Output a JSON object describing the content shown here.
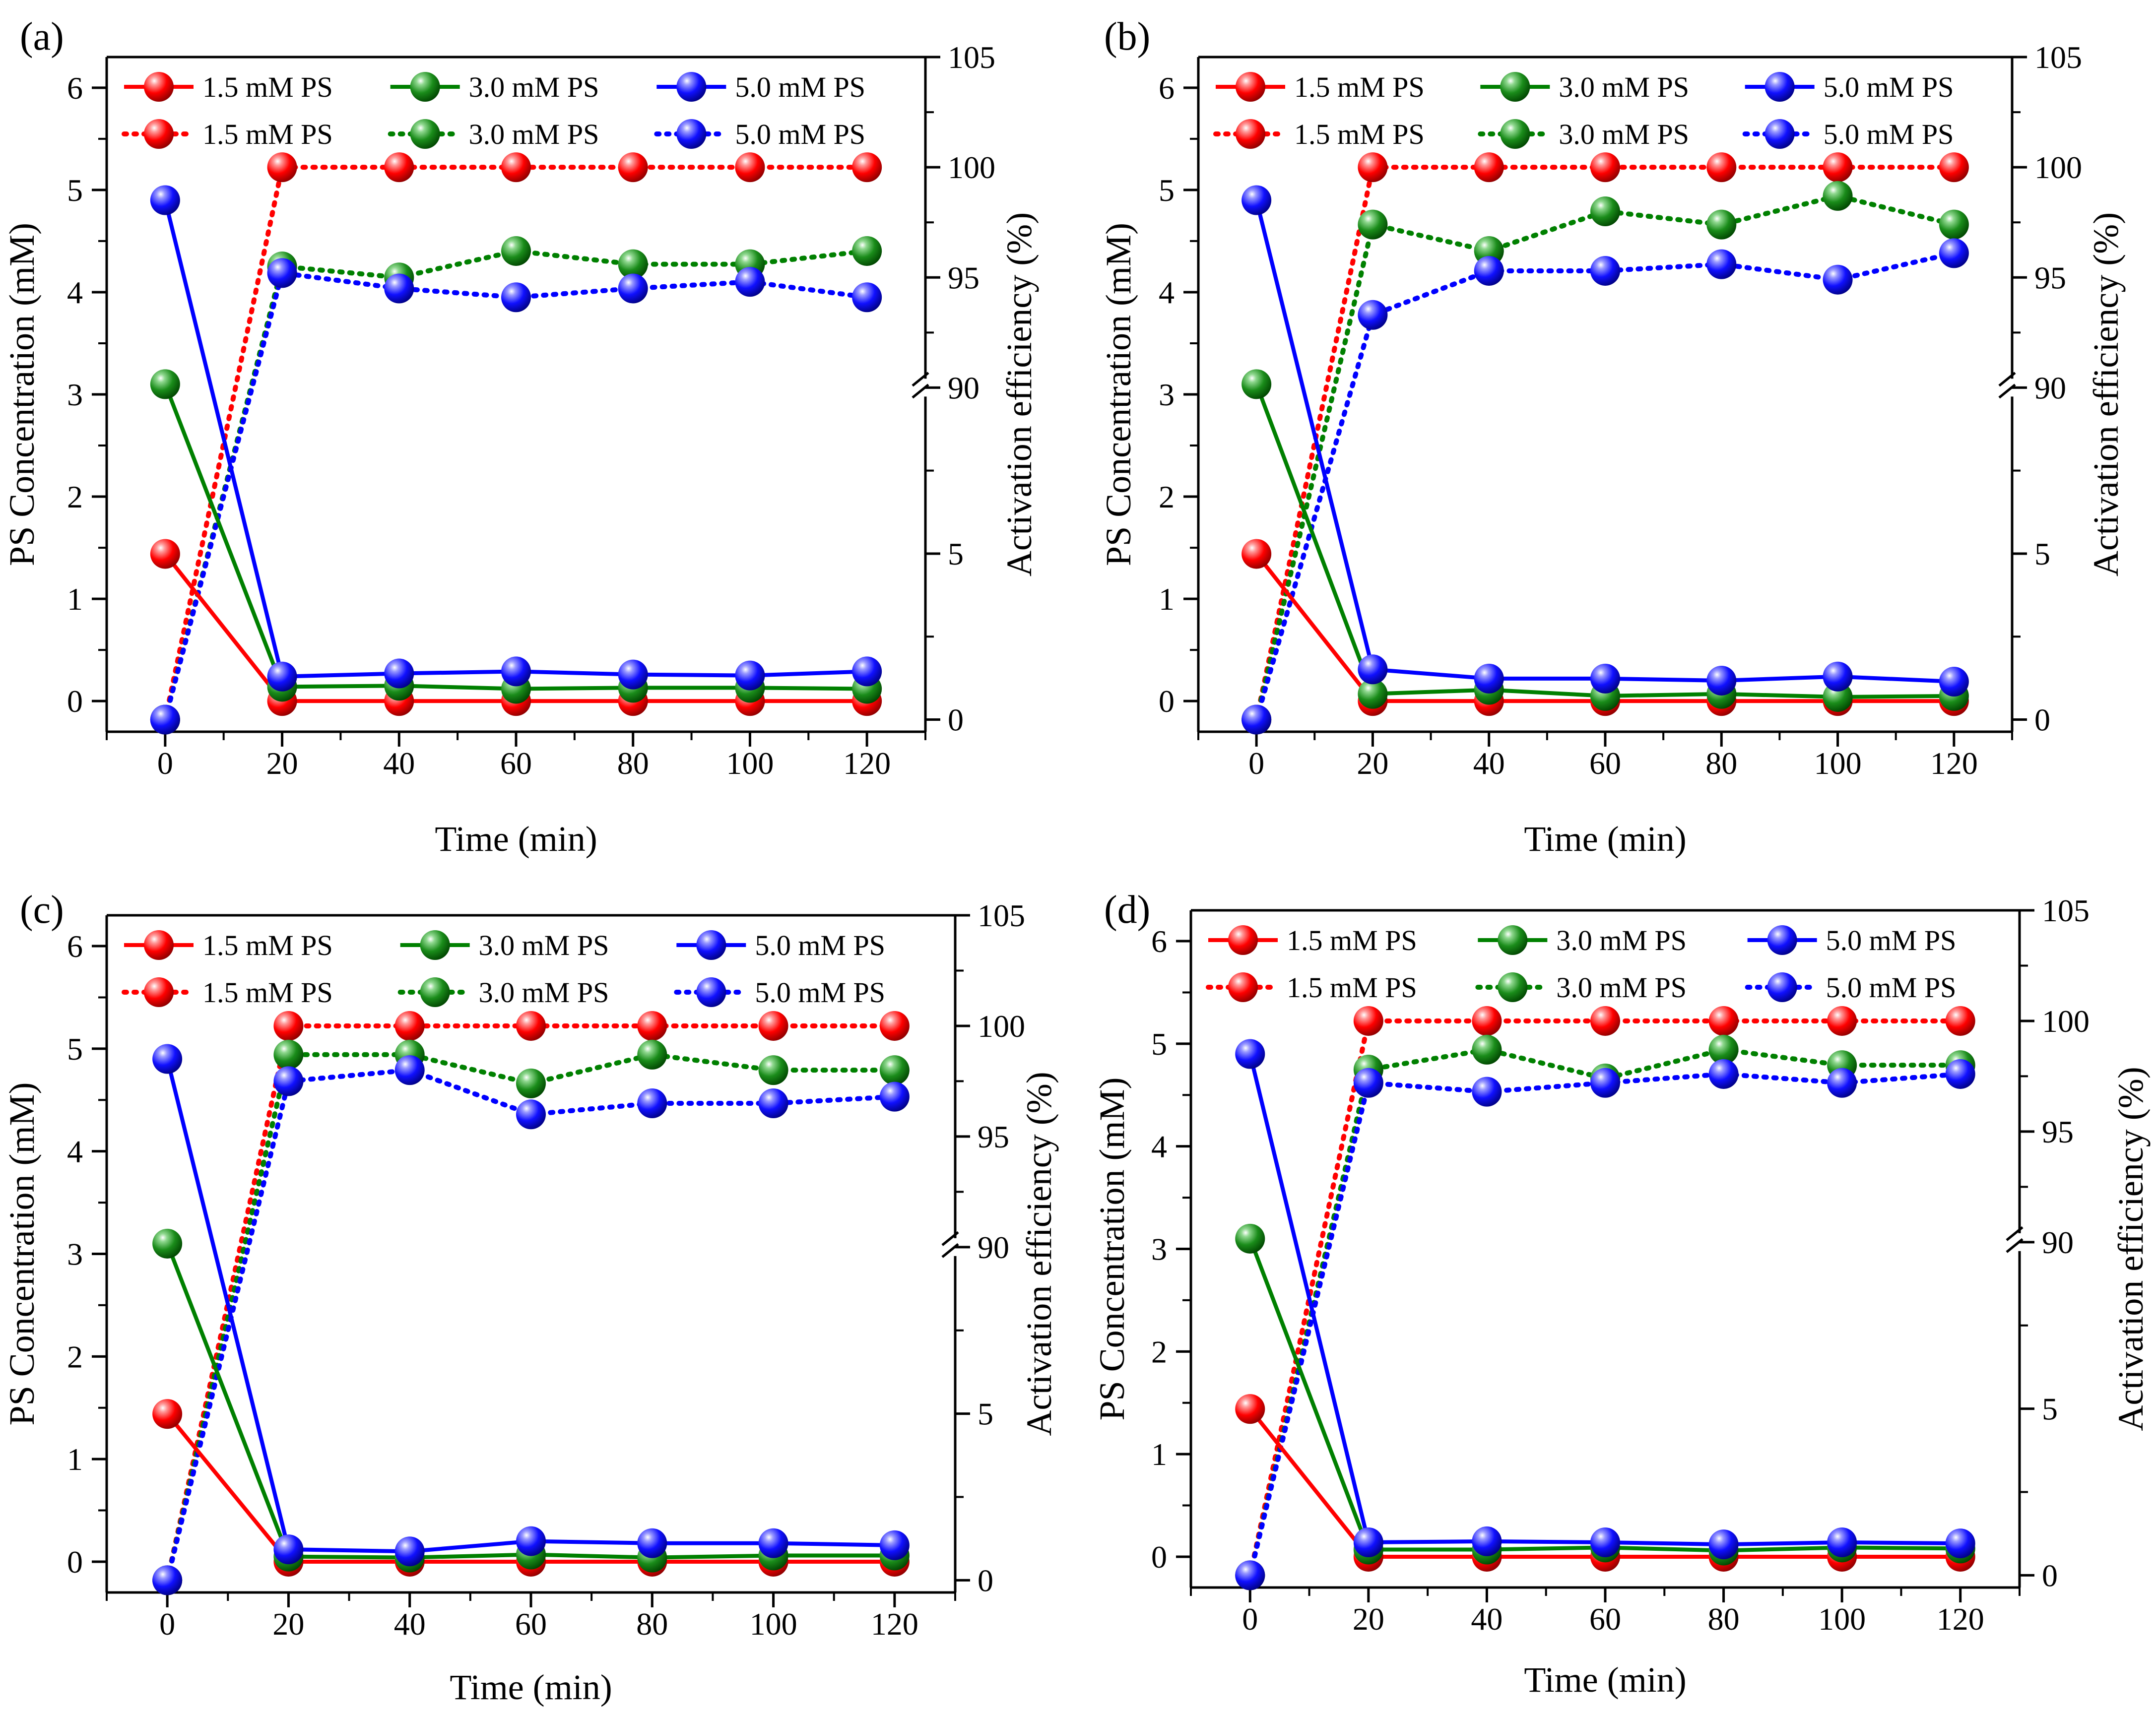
{
  "figure": {
    "series_names": [
      "1.5 mM PS",
      "3.0 mM PS",
      "5.0 mM PS"
    ],
    "colors": {
      "red": "#ff0000",
      "green": "#008000",
      "blue": "#0000ff"
    },
    "legend_rows": {
      "row1_style": "solid",
      "row2_style": "dotted",
      "labels": [
        "1.5 mM PS",
        "3.0 mM PS",
        "5.0 mM PS"
      ]
    }
  },
  "chart_data": [
    {
      "panel": "(a)",
      "type": "line",
      "xlabel": "Time (min)",
      "ylabel_left": "PS Concentration (mM)",
      "ylabel_right": "Activation efficiency (%)",
      "x": [
        0,
        20,
        40,
        60,
        80,
        100,
        120
      ],
      "x_ticks": [
        "0",
        "20",
        "40",
        "60",
        "80",
        "100",
        "120"
      ],
      "xlim": [
        -10,
        130
      ],
      "y_left_ticks": [
        "0",
        "1",
        "2",
        "3",
        "4",
        "5",
        "6"
      ],
      "ylim_left": [
        -0.3,
        6.3
      ],
      "y_right_ticks": [
        "0",
        "5",
        "90",
        "95",
        "100",
        "105"
      ],
      "right_axis_break": "10 → 90",
      "concentration_series": [
        {
          "name": "1.5 mM PS",
          "color": "red",
          "values": [
            1.44,
            0,
            0,
            0,
            0,
            0,
            0
          ]
        },
        {
          "name": "3.0 mM PS",
          "color": "green",
          "values": [
            3.1,
            0.14,
            0.15,
            0.12,
            0.13,
            0.13,
            0.12
          ]
        },
        {
          "name": "5.0 mM PS",
          "color": "blue",
          "values": [
            4.9,
            0.24,
            0.27,
            0.29,
            0.26,
            0.25,
            0.29
          ]
        }
      ],
      "efficiency_series": [
        {
          "name": "1.5 mM PS",
          "color": "red",
          "values": [
            0,
            100,
            100,
            100,
            100,
            100,
            100
          ]
        },
        {
          "name": "3.0 mM PS",
          "color": "green",
          "values": [
            0,
            95.5,
            95,
            96.2,
            95.6,
            95.6,
            96.2
          ]
        },
        {
          "name": "5.0 mM PS",
          "color": "blue",
          "values": [
            0,
            95.2,
            94.5,
            94.1,
            94.5,
            94.8,
            94.1
          ]
        }
      ]
    },
    {
      "panel": "(b)",
      "type": "line",
      "xlabel": "Time (min)",
      "ylabel_left": "PS Concentration (mM)",
      "ylabel_right": "Activation efficiency (%)",
      "x": [
        0,
        20,
        40,
        60,
        80,
        100,
        120
      ],
      "x_ticks": [
        "0",
        "20",
        "40",
        "60",
        "80",
        "100",
        "120"
      ],
      "xlim": [
        -10,
        130
      ],
      "y_left_ticks": [
        "0",
        "1",
        "2",
        "3",
        "4",
        "5",
        "6"
      ],
      "ylim_left": [
        -0.3,
        6.3
      ],
      "y_right_ticks": [
        "0",
        "5",
        "90",
        "95",
        "100",
        "105"
      ],
      "right_axis_break": "10 → 90",
      "concentration_series": [
        {
          "name": "1.5 mM PS",
          "color": "red",
          "values": [
            1.44,
            0,
            0,
            0,
            0,
            0,
            0
          ]
        },
        {
          "name": "3.0 mM PS",
          "color": "green",
          "values": [
            3.1,
            0.07,
            0.11,
            0.05,
            0.07,
            0.04,
            0.05
          ]
        },
        {
          "name": "5.0 mM PS",
          "color": "blue",
          "values": [
            4.9,
            0.31,
            0.22,
            0.22,
            0.2,
            0.24,
            0.19
          ]
        }
      ],
      "efficiency_series": [
        {
          "name": "1.5 mM PS",
          "color": "red",
          "values": [
            0,
            100,
            100,
            100,
            100,
            100,
            100
          ]
        },
        {
          "name": "3.0 mM PS",
          "color": "green",
          "values": [
            0,
            97.4,
            96.2,
            98,
            97.4,
            98.7,
            97.4
          ]
        },
        {
          "name": "5.0 mM PS",
          "color": "blue",
          "values": [
            0,
            93.3,
            95.3,
            95.3,
            95.6,
            94.9,
            96.1
          ]
        }
      ]
    },
    {
      "panel": "(c)",
      "type": "line",
      "xlabel": "Time (min)",
      "ylabel_left": "PS Concentration (mM)",
      "ylabel_right": "Activation efficiency (%)",
      "x": [
        0,
        20,
        40,
        60,
        80,
        100,
        120
      ],
      "x_ticks": [
        "0",
        "20",
        "40",
        "60",
        "80",
        "100",
        "120"
      ],
      "xlim": [
        -10,
        130
      ],
      "y_left_ticks": [
        "0",
        "1",
        "2",
        "3",
        "4",
        "5",
        "6"
      ],
      "ylim_left": [
        -0.3,
        6.3
      ],
      "y_right_ticks": [
        "0",
        "5",
        "90",
        "95",
        "100",
        "105"
      ],
      "right_axis_break": "10 → 90",
      "concentration_series": [
        {
          "name": "1.5 mM PS",
          "color": "red",
          "values": [
            1.44,
            0,
            0,
            0,
            0,
            0,
            0
          ]
        },
        {
          "name": "3.0 mM PS",
          "color": "green",
          "values": [
            3.1,
            0.05,
            0.04,
            0.07,
            0.04,
            0.06,
            0.06
          ]
        },
        {
          "name": "5.0 mM PS",
          "color": "blue",
          "values": [
            4.9,
            0.12,
            0.1,
            0.2,
            0.18,
            0.18,
            0.16
          ]
        }
      ],
      "efficiency_series": [
        {
          "name": "1.5 mM PS",
          "color": "red",
          "values": [
            0,
            100,
            100,
            100,
            100,
            100,
            100
          ]
        },
        {
          "name": "3.0 mM PS",
          "color": "green",
          "values": [
            0,
            98.7,
            98.7,
            97.4,
            98.7,
            98,
            98
          ]
        },
        {
          "name": "5.0 mM PS",
          "color": "blue",
          "values": [
            0,
            97.5,
            98,
            96,
            96.5,
            96.5,
            96.8
          ]
        }
      ]
    },
    {
      "panel": "(d)",
      "type": "line",
      "xlabel": "Time (min)",
      "ylabel_left": "PS Concentration (mM)",
      "ylabel_right": "Activation efficiency (%)",
      "x": [
        0,
        20,
        40,
        60,
        80,
        100,
        120
      ],
      "x_ticks": [
        "0",
        "20",
        "40",
        "60",
        "80",
        "100",
        "120"
      ],
      "xlim": [
        -10,
        130
      ],
      "y_left_ticks": [
        "0",
        "1",
        "2",
        "3",
        "4",
        "5",
        "6"
      ],
      "ylim_left": [
        -0.3,
        6.3
      ],
      "y_right_ticks": [
        "0",
        "5",
        "90",
        "95",
        "100",
        "105"
      ],
      "right_axis_break": "10 → 90",
      "concentration_series": [
        {
          "name": "1.5 mM PS",
          "color": "red",
          "values": [
            1.44,
            0,
            0,
            0,
            0,
            0,
            0
          ]
        },
        {
          "name": "3.0 mM PS",
          "color": "green",
          "values": [
            3.1,
            0.07,
            0.07,
            0.09,
            0.06,
            0.09,
            0.08
          ]
        },
        {
          "name": "5.0 mM PS",
          "color": "blue",
          "values": [
            4.9,
            0.14,
            0.15,
            0.14,
            0.12,
            0.14,
            0.13
          ]
        }
      ],
      "efficiency_series": [
        {
          "name": "1.5 mM PS",
          "color": "red",
          "values": [
            0,
            100,
            100,
            100,
            100,
            100,
            100
          ]
        },
        {
          "name": "3.0 mM PS",
          "color": "green",
          "values": [
            0,
            97.8,
            98.7,
            97.4,
            98.7,
            98,
            98
          ]
        },
        {
          "name": "5.0 mM PS",
          "color": "blue",
          "values": [
            0,
            97.2,
            96.8,
            97.2,
            97.6,
            97.2,
            97.6
          ]
        }
      ]
    }
  ]
}
